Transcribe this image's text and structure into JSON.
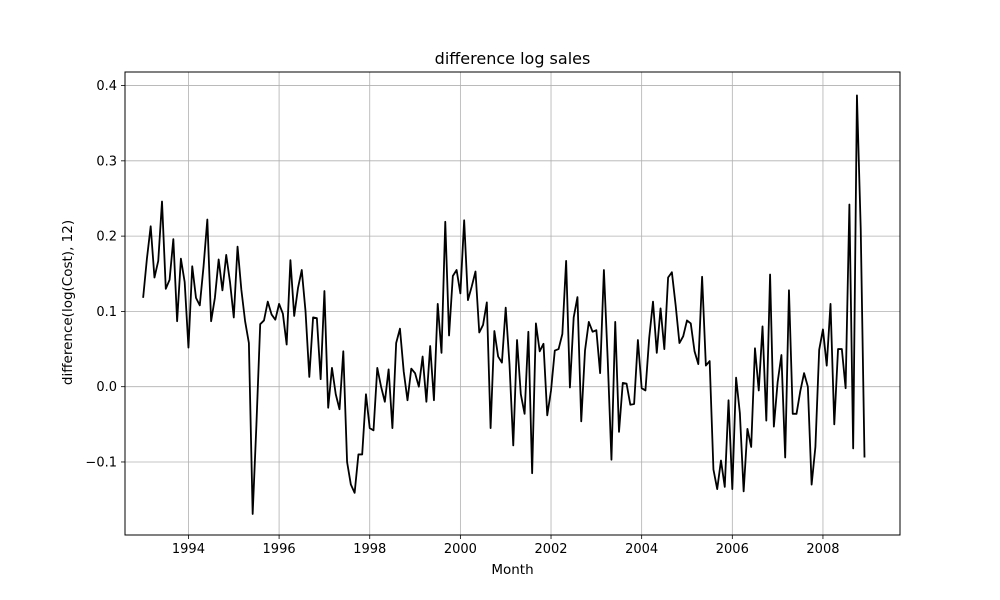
{
  "chart_data": {
    "type": "line",
    "title": "difference log sales",
    "xlabel": "Month",
    "ylabel": "difference(log(Cost), 12)",
    "x_start": "1993-01",
    "x_frequency": "monthly",
    "xlim": [
      1992.6,
      2009.7
    ],
    "ylim": [
      -0.197,
      0.418
    ],
    "x_ticks": [
      1994,
      1996,
      1998,
      2000,
      2002,
      2004,
      2006,
      2008
    ],
    "x_tick_labels": [
      "1994",
      "1996",
      "1998",
      "2000",
      "2002",
      "2004",
      "2006",
      "2008"
    ],
    "y_ticks": [
      -0.1,
      0.0,
      0.1,
      0.2,
      0.3,
      0.4
    ],
    "y_tick_labels": [
      "−0.1",
      "0.0",
      "0.1",
      "0.2",
      "0.3",
      "0.4"
    ],
    "grid": true,
    "line_color": "#000000",
    "series": [
      {
        "values": [
          0.118,
          0.17,
          0.213,
          0.145,
          0.167,
          0.246,
          0.13,
          0.142,
          0.196,
          0.087,
          0.17,
          0.139,
          0.052,
          0.16,
          0.118,
          0.108,
          0.16,
          0.222,
          0.087,
          0.118,
          0.169,
          0.128,
          0.175,
          0.139,
          0.092,
          0.186,
          0.129,
          0.087,
          0.058,
          -0.169,
          -0.05,
          0.083,
          0.088,
          0.113,
          0.096,
          0.089,
          0.11,
          0.097,
          0.056,
          0.168,
          0.094,
          0.131,
          0.155,
          0.1,
          0.013,
          0.092,
          0.091,
          0.01,
          0.127,
          -0.028,
          0.025,
          -0.01,
          -0.03,
          0.047,
          -0.1,
          -0.13,
          -0.141,
          -0.09,
          -0.09,
          -0.01,
          -0.055,
          -0.058,
          0.025,
          0.0,
          -0.02,
          0.023,
          -0.055,
          0.058,
          0.077,
          0.02,
          -0.018,
          0.024,
          0.018,
          0.0,
          0.04,
          -0.02,
          0.054,
          -0.018,
          0.11,
          0.045,
          0.219,
          0.068,
          0.147,
          0.155,
          0.124,
          0.221,
          0.115,
          0.133,
          0.153,
          0.072,
          0.082,
          0.112,
          -0.055,
          0.074,
          0.04,
          0.032,
          0.105,
          0.03,
          -0.078,
          0.062,
          -0.01,
          -0.036,
          0.073,
          -0.115,
          0.084,
          0.047,
          0.057,
          -0.038,
          -0.005,
          0.048,
          0.05,
          0.07,
          0.167,
          -0.001,
          0.092,
          0.119,
          -0.046,
          0.048,
          0.086,
          0.073,
          0.075,
          0.018,
          0.155,
          0.037,
          -0.097,
          0.086,
          -0.06,
          0.005,
          0.004,
          -0.024,
          -0.023,
          0.062,
          -0.002,
          -0.005,
          0.065,
          0.113,
          0.045,
          0.104,
          0.05,
          0.145,
          0.152,
          0.108,
          0.058,
          0.067,
          0.088,
          0.084,
          0.047,
          0.03,
          0.146,
          0.028,
          0.034,
          -0.11,
          -0.136,
          -0.098,
          -0.133,
          -0.018,
          -0.136,
          0.012,
          -0.035,
          -0.139,
          -0.056,
          -0.08,
          0.051,
          -0.005,
          0.08,
          -0.045,
          0.149,
          -0.053,
          0.006,
          0.042,
          -0.094,
          0.128,
          -0.036,
          -0.036,
          -0.006,
          0.018,
          0.0,
          -0.13,
          -0.08,
          0.049,
          0.076,
          0.028,
          0.11,
          -0.05,
          0.05,
          0.05,
          -0.002,
          0.242,
          -0.082,
          0.387,
          0.21,
          -0.094
        ]
      }
    ]
  }
}
